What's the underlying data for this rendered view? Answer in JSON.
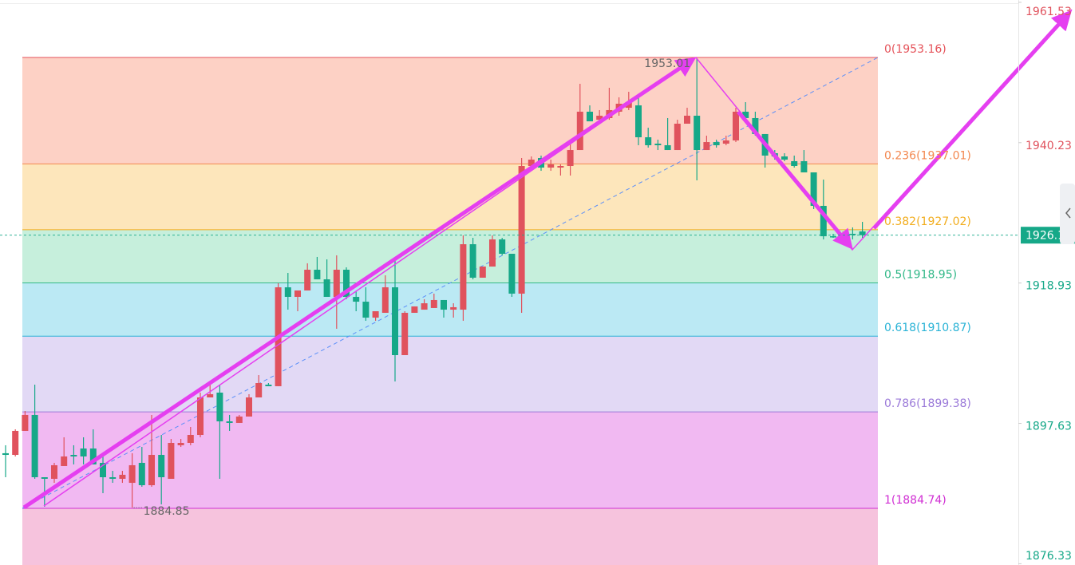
{
  "chart_data": {
    "type": "candlestick",
    "ylim": [
      1876.14,
      1961.88
    ],
    "yticks": [
      1961.53,
      1940.23,
      1918.93,
      1897.63,
      1876.33
    ],
    "grid": false,
    "up_color": "#e0525d",
    "down_color": "#16a888",
    "open": [
      1893.1,
      1892.85,
      1896.49,
      1898.91,
      1889.46,
      1889.22,
      1891.16,
      1892.85,
      1893.82,
      1893.82,
      1891.64,
      1889.46,
      1889.22,
      1888.61,
      1891.64,
      1888.25,
      1892.85,
      1889.22,
      1894.31,
      1894.67,
      1895.88,
      1901.57,
      1902.3,
      1897.94,
      1897.7,
      1898.67,
      1901.57,
      1903.51,
      1903.27,
      1918.28,
      1916.83,
      1917.8,
      1920.95,
      1919.49,
      1916.83,
      1920.95,
      1916.83,
      1916.1,
      1913.68,
      1914.41,
      1918.28,
      1907.99,
      1914.41,
      1914.89,
      1915.14,
      1916.35,
      1914.89,
      1914.89,
      1924.82,
      1919.74,
      1921.43,
      1925.55,
      1923.37,
      1917.32,
      1936.69,
      1937.9,
      1936.45,
      1936.45,
      1936.69,
      1939.11,
      1944.93,
      1943.71,
      1943.96,
      1944.93,
      1945.53,
      1945.89,
      1941.05,
      1940.08,
      1939.84,
      1939.11,
      1943.11,
      1944.32,
      1939.11,
      1940.32,
      1940.08,
      1940.57,
      1944.93,
      1943.96,
      1941.54,
      1938.63,
      1938.14,
      1937.42,
      1937.42,
      1935.72,
      1930.64,
      1926.03,
      1926.03,
      1926.4,
      1926.76
    ],
    "high": [
      1894.31,
      1896.73,
      1899.51,
      1903.51,
      1889.46,
      1891.64,
      1895.52,
      1894.31,
      1895.52,
      1896.73,
      1892.85,
      1890.43,
      1890.43,
      1893.1,
      1894.06,
      1898.91,
      1895.88,
      1895.27,
      1895.27,
      1897.09,
      1902.3,
      1903.99,
      1903.51,
      1898.91,
      1898.91,
      1902.06,
      1904.96,
      1903.75,
      1918.89,
      1920.46,
      1917.8,
      1921.92,
      1922.89,
      1922.52,
      1923.13,
      1921.31,
      1917.68,
      1918.28,
      1914.65,
      1920.1,
      1922.4,
      1914.65,
      1915.38,
      1916.47,
      1917.32,
      1916.35,
      1915.86,
      1926.16,
      1925.79,
      1921.43,
      1926.16,
      1925.79,
      1923.37,
      1937.9,
      1938.14,
      1938.27,
      1937.66,
      1936.93,
      1940.32,
      1949.16,
      1945.89,
      1945.17,
      1948.56,
      1947.11,
      1947.95,
      1947.59,
      1942.5,
      1940.69,
      1943.96,
      1943.71,
      1945.53,
      1953.01,
      1941.29,
      1940.69,
      1941.29,
      1945.53,
      1946.38,
      1944.93,
      1941.54,
      1939.11,
      1938.63,
      1938.27,
      1939.11,
      1935.72,
      1934.63,
      1926.4,
      1926.76,
      1927.37,
      1928.21
    ],
    "low": [
      1889.46,
      1892.61,
      1896.49,
      1889.22,
      1884.98,
      1888.61,
      1891.16,
      1891.4,
      1891.4,
      1891.4,
      1887.04,
      1888.61,
      1888.61,
      1884.85,
      1888.01,
      1888.01,
      1885.34,
      1889.22,
      1894.06,
      1894.31,
      1895.52,
      1901.57,
      1889.22,
      1896.49,
      1897.7,
      1898.67,
      1901.57,
      1903.27,
      1903.27,
      1914.89,
      1914.65,
      1917.8,
      1919.49,
      1916.83,
      1911.99,
      1916.47,
      1914.65,
      1913.2,
      1913.2,
      1914.41,
      1903.99,
      1907.99,
      1914.41,
      1914.89,
      1915.14,
      1913.68,
      1913.68,
      1913.2,
      1919.49,
      1919.74,
      1921.43,
      1923.13,
      1916.83,
      1914.41,
      1936.69,
      1935.96,
      1935.96,
      1935.24,
      1935.24,
      1939.11,
      1943.47,
      1943.47,
      1943.71,
      1944.32,
      1945.17,
      1939.84,
      1939.48,
      1939.11,
      1939.11,
      1939.11,
      1943.11,
      1934.51,
      1939.11,
      1939.48,
      1939.84,
      1940.32,
      1943.71,
      1941.29,
      1936.45,
      1937.66,
      1937.42,
      1936.45,
      1935.72,
      1930.15,
      1925.55,
      1925.79,
      1925.79,
      1925.55,
      1925.79
    ],
    "close": [
      1892.85,
      1896.49,
      1898.91,
      1889.46,
      1889.22,
      1891.28,
      1892.61,
      1892.61,
      1892.61,
      1891.4,
      1889.46,
      1889.22,
      1889.83,
      1891.28,
      1888.25,
      1892.85,
      1889.46,
      1894.67,
      1894.67,
      1895.88,
      1901.57,
      1902.06,
      1897.94,
      1897.7,
      1898.67,
      1901.57,
      1903.75,
      1903.27,
      1918.28,
      1916.83,
      1917.8,
      1920.95,
      1919.49,
      1916.83,
      1920.95,
      1916.83,
      1916.1,
      1913.68,
      1914.65,
      1918.28,
      1907.99,
      1914.41,
      1915.38,
      1915.86,
      1916.35,
      1914.89,
      1915.26,
      1924.82,
      1919.74,
      1921.43,
      1925.55,
      1923.37,
      1917.32,
      1936.69,
      1937.66,
      1936.45,
      1936.93,
      1936.69,
      1939.11,
      1944.93,
      1943.47,
      1944.32,
      1945.17,
      1946.14,
      1946.38,
      1941.05,
      1939.84,
      1939.84,
      1939.11,
      1943.11,
      1944.32,
      1939.11,
      1940.32,
      1939.84,
      1940.57,
      1944.93,
      1943.96,
      1941.54,
      1938.27,
      1938.14,
      1937.66,
      1936.69,
      1935.72,
      1930.64,
      1926.03,
      1926.03,
      1926.52,
      1926.4,
      1926.19
    ],
    "fib_levels": [
      {
        "label": "0(1953.16)",
        "value": 1953.16,
        "color": "#e5535a",
        "fill": "#fdd1c5"
      },
      {
        "label": "0.236(1937.01)",
        "value": 1937.01,
        "color": "#f3874f",
        "fill": "#fde6bb"
      },
      {
        "label": "0.382(1927.02)",
        "value": 1927.02,
        "color": "#f2ad1e",
        "fill": "#c6efdc"
      },
      {
        "label": "0.5(1918.95)",
        "value": 1918.95,
        "color": "#32b888",
        "fill": "#bbe9f4"
      },
      {
        "label": "0.618(1910.87)",
        "value": 1910.87,
        "color": "#2ab3d6",
        "fill": "#e2d9f5"
      },
      {
        "label": "0.786(1899.38)",
        "value": 1899.38,
        "color": "#9b7ad9",
        "fill": "#f1b9f2"
      },
      {
        "label": "1(1884.74)",
        "value": 1884.74,
        "color": "#d02fd3",
        "fill": "#f6c3dd"
      }
    ]
  }
}
